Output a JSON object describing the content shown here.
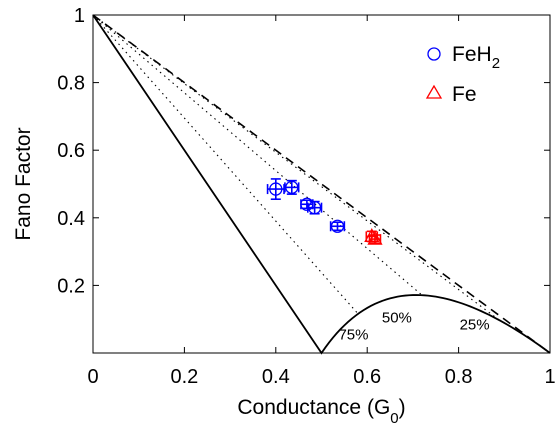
{
  "chart_data": {
    "type": "scatter",
    "xlabel": "Conductance (G",
    "xlabel_sub": "0",
    "xlabel_close": ")",
    "ylabel": "Fano Factor",
    "xlim": [
      0,
      1
    ],
    "ylim": [
      0,
      1
    ],
    "x_ticks": [
      {
        "value": 0,
        "label": "0"
      },
      {
        "value": 0.2,
        "label": "0.2"
      },
      {
        "value": 0.4,
        "label": "0.4"
      },
      {
        "value": 0.6,
        "label": "0.6"
      },
      {
        "value": 0.8,
        "label": "0.8"
      },
      {
        "value": 1,
        "label": "1"
      }
    ],
    "y_ticks": [
      {
        "value": 0.2,
        "label": "0.2"
      },
      {
        "value": 0.4,
        "label": "0.4"
      },
      {
        "value": 0.6,
        "label": "0.6"
      },
      {
        "value": 0.8,
        "label": "0.8"
      },
      {
        "value": 1,
        "label": "1"
      }
    ],
    "series": [
      {
        "name": "FeH",
        "name_sub": "2",
        "marker": "circle",
        "color": "#0000ff",
        "points": [
          {
            "x": 0.4,
            "y": 0.485,
            "xerr": 0.018,
            "yerr": 0.03
          },
          {
            "x": 0.435,
            "y": 0.49,
            "xerr": 0.015,
            "yerr": 0.02
          },
          {
            "x": 0.468,
            "y": 0.44,
            "xerr": 0.013,
            "yerr": 0.012
          },
          {
            "x": 0.485,
            "y": 0.43,
            "xerr": 0.015,
            "yerr": 0.018
          },
          {
            "x": 0.535,
            "y": 0.375,
            "xerr": 0.015,
            "yerr": 0.012
          }
        ]
      },
      {
        "name": "Fe",
        "marker": "triangle",
        "color": "#ff0000",
        "points": [
          {
            "x": 0.61,
            "y": 0.345,
            "xerr": 0.012,
            "yerr": 0.015
          },
          {
            "x": 0.617,
            "y": 0.337,
            "xerr": 0.012,
            "yerr": 0.012
          }
        ]
      }
    ],
    "reference_curves": [
      {
        "id": "single-channel",
        "style": "solid",
        "description_formula": "1 - 2G (G<=0.5), (G-1)(1-2G)... lower bound"
      },
      {
        "id": "upper-bound",
        "style": "dashed",
        "formula": "1 - G"
      }
    ],
    "dotted_lines": [
      0.25,
      0.5,
      0.75
    ],
    "annotations": [
      {
        "text": "25%",
        "x": 0.835,
        "y": 0.07
      },
      {
        "text": "50%",
        "x": 0.665,
        "y": 0.09
      },
      {
        "text": "75%",
        "x": 0.57,
        "y": 0.04
      }
    ],
    "legend_position": "top-right",
    "grid": false
  }
}
